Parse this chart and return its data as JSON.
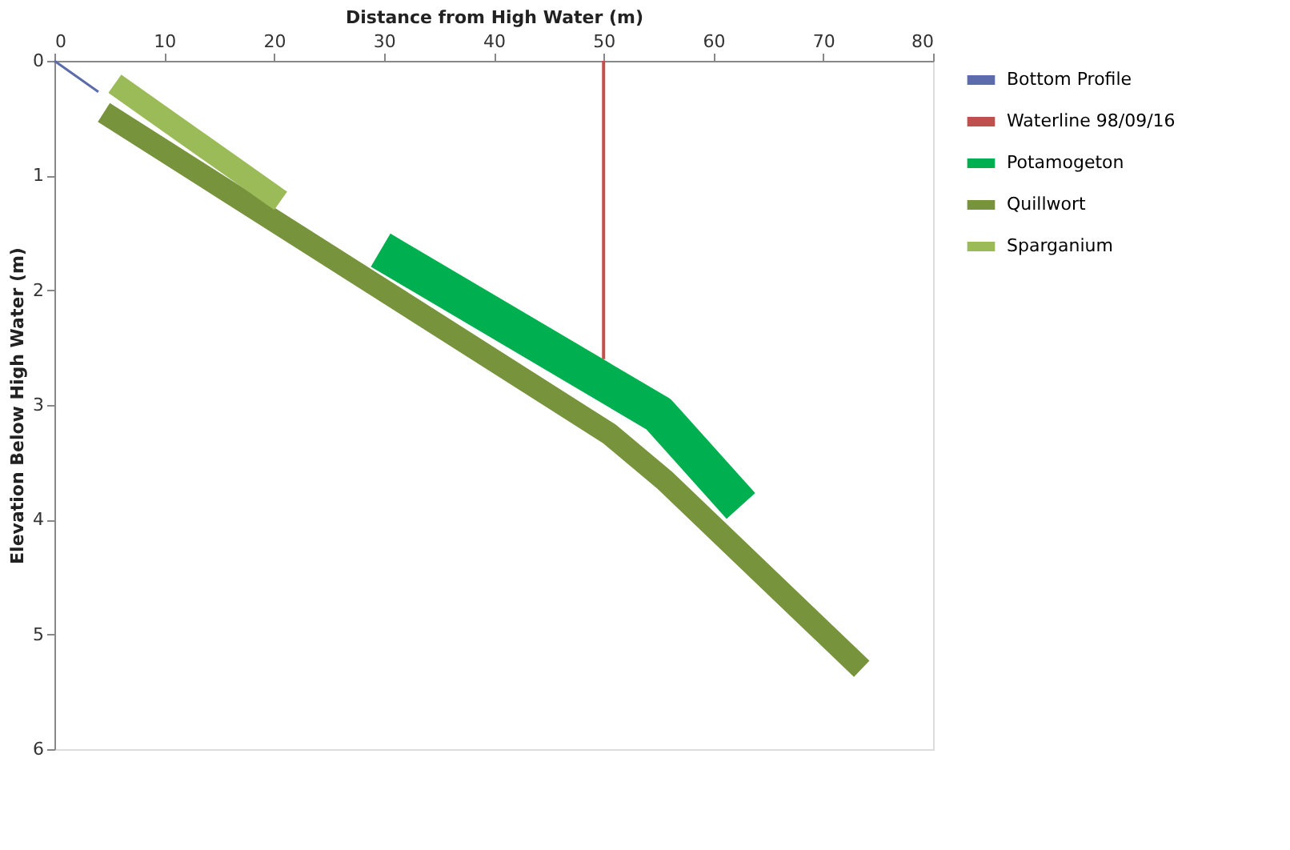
{
  "chart_data": {
    "type": "line",
    "xlabel": "Distance from High Water (m)",
    "ylabel": "Elevation Below High Water (m)",
    "xlim": [
      0,
      80
    ],
    "xticks": [
      0,
      10,
      20,
      30,
      40,
      50,
      60,
      70,
      80
    ],
    "ylim": [
      6,
      0
    ],
    "yticks": [
      0,
      1,
      2,
      3,
      4,
      5,
      6
    ],
    "grid": false,
    "legend": "right",
    "line_style": "solid",
    "marker": "none",
    "series": [
      {
        "name": "Bottom Profile",
        "color": "#5b6bab",
        "x": [
          0,
          4
        ],
        "values": [
          0,
          0.27
        ]
      },
      {
        "name": "Waterline 98/09/16",
        "color": "#c0504d",
        "x": [
          50,
          50
        ],
        "values": [
          0,
          2.6
        ]
      },
      {
        "name": "Potamogeton",
        "color": "#00b050",
        "x": [
          29.7,
          55,
          62.5
        ],
        "values": [
          1.65,
          3.08,
          3.88
        ]
      },
      {
        "name": "Quillwort",
        "color": "#77933c",
        "x": [
          4.5,
          50.5,
          55.5,
          73.5
        ],
        "values": [
          0.45,
          3.25,
          3.65,
          5.3
        ]
      },
      {
        "name": "Sparganium",
        "color": "#9bbb59",
        "x": [
          5.5,
          20.6
        ],
        "values": [
          0.2,
          1.22
        ]
      }
    ]
  }
}
